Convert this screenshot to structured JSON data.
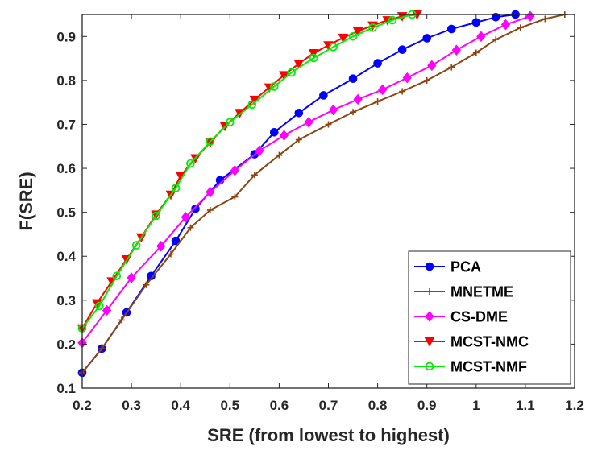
{
  "chart_data": {
    "type": "line",
    "title": "",
    "xlabel": "SRE (from lowest to highest)",
    "ylabel": "F(SRE)",
    "xlim": [
      0.2,
      1.2
    ],
    "ylim": [
      0.1,
      0.95
    ],
    "xticks": [
      "0.2",
      "0.3",
      "0.4",
      "0.5",
      "0.6",
      "0.7",
      "0.8",
      "0.9",
      "1",
      "1.1",
      "1.2"
    ],
    "yticks": [
      "0.1",
      "0.2",
      "0.3",
      "0.4",
      "0.5",
      "0.6",
      "0.7",
      "0.8",
      "0.9"
    ],
    "grid": false,
    "legend_position": "bottom-right",
    "series": [
      {
        "name": "PCA",
        "color": "#0000ff",
        "marker": "circle",
        "x": [
          0.2,
          0.24,
          0.29,
          0.34,
          0.39,
          0.43,
          0.48,
          0.55,
          0.59,
          0.64,
          0.69,
          0.75,
          0.8,
          0.85,
          0.9,
          0.95,
          1.0,
          1.04,
          1.08
        ],
        "y": [
          0.135,
          0.19,
          0.272,
          0.355,
          0.435,
          0.508,
          0.573,
          0.632,
          0.682,
          0.726,
          0.766,
          0.804,
          0.839,
          0.87,
          0.896,
          0.917,
          0.932,
          0.944,
          0.95
        ]
      },
      {
        "name": "MNETME",
        "color": "#8b4513",
        "marker": "plus",
        "x": [
          0.2,
          0.24,
          0.28,
          0.33,
          0.38,
          0.42,
          0.46,
          0.51,
          0.55,
          0.6,
          0.64,
          0.7,
          0.75,
          0.8,
          0.85,
          0.9,
          0.95,
          1.0,
          1.04,
          1.09,
          1.14,
          1.18
        ],
        "y": [
          0.135,
          0.19,
          0.255,
          0.335,
          0.405,
          0.465,
          0.505,
          0.535,
          0.585,
          0.63,
          0.665,
          0.7,
          0.728,
          0.752,
          0.775,
          0.8,
          0.83,
          0.863,
          0.893,
          0.92,
          0.94,
          0.95
        ]
      },
      {
        "name": "CS-DME",
        "color": "#ff00ff",
        "marker": "diamond",
        "x": [
          0.2,
          0.25,
          0.3,
          0.36,
          0.41,
          0.46,
          0.51,
          0.56,
          0.61,
          0.66,
          0.71,
          0.76,
          0.81,
          0.86,
          0.91,
          0.96,
          1.01,
          1.06,
          1.11
        ],
        "y": [
          0.203,
          0.277,
          0.351,
          0.423,
          0.489,
          0.546,
          0.595,
          0.64,
          0.675,
          0.705,
          0.733,
          0.757,
          0.779,
          0.806,
          0.834,
          0.869,
          0.9,
          0.927,
          0.946
        ]
      },
      {
        "name": "MCST-NMC",
        "color": "#ff0000",
        "marker": "triangle-down",
        "x": [
          0.2,
          0.23,
          0.26,
          0.29,
          0.32,
          0.35,
          0.38,
          0.4,
          0.43,
          0.46,
          0.49,
          0.52,
          0.55,
          0.58,
          0.61,
          0.64,
          0.67,
          0.7,
          0.73,
          0.76,
          0.79,
          0.82,
          0.85,
          0.88
        ],
        "y": [
          0.236,
          0.293,
          0.343,
          0.393,
          0.443,
          0.495,
          0.54,
          0.583,
          0.623,
          0.659,
          0.696,
          0.726,
          0.756,
          0.784,
          0.812,
          0.838,
          0.862,
          0.88,
          0.897,
          0.912,
          0.925,
          0.937,
          0.946,
          0.95
        ]
      },
      {
        "name": "MCST-NMF",
        "color": "#00ee00",
        "marker": "circle-open",
        "x": [
          0.2,
          0.235,
          0.27,
          0.31,
          0.35,
          0.39,
          0.42,
          0.46,
          0.5,
          0.545,
          0.59,
          0.625,
          0.67,
          0.71,
          0.75,
          0.79,
          0.83,
          0.87
        ],
        "y": [
          0.236,
          0.287,
          0.355,
          0.425,
          0.492,
          0.555,
          0.611,
          0.661,
          0.705,
          0.745,
          0.786,
          0.818,
          0.851,
          0.876,
          0.9,
          0.92,
          0.937,
          0.95
        ]
      }
    ]
  }
}
